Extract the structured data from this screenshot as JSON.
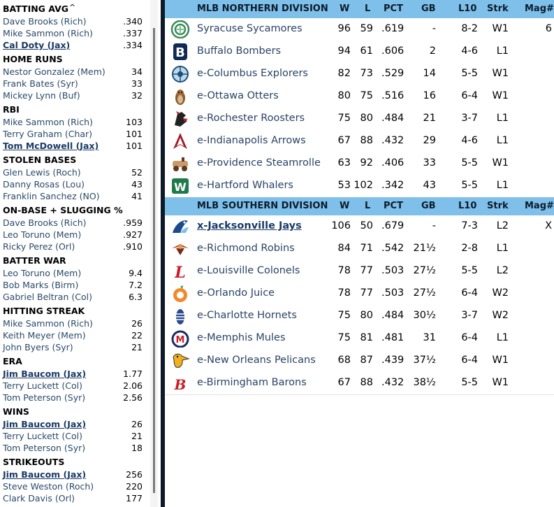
{
  "leaders": {
    "scroll_caret": "^",
    "sections": [
      {
        "title": "BATTING AVG",
        "rows": [
          {
            "name": "Dave Brooks (Rich)",
            "value": ".340",
            "link": false
          },
          {
            "name": "Mike Sammon (Rich)",
            "value": ".337",
            "link": false
          },
          {
            "name": "Cal Doty (Jax)",
            "value": ".334",
            "link": true
          }
        ]
      },
      {
        "title": "HOME RUNS",
        "rows": [
          {
            "name": "Nestor Gonzalez (Mem)",
            "value": "34",
            "link": false
          },
          {
            "name": "Frank Bates (Syr)",
            "value": "33",
            "link": false
          },
          {
            "name": "Mickey Lynn (Buf)",
            "value": "32",
            "link": false
          }
        ]
      },
      {
        "title": "RBI",
        "rows": [
          {
            "name": "Mike Sammon (Rich)",
            "value": "103",
            "link": false
          },
          {
            "name": "Terry Graham (Char)",
            "value": "101",
            "link": false
          },
          {
            "name": "Tom McDowell (Jax)",
            "value": "101",
            "link": true
          }
        ]
      },
      {
        "title": "STOLEN BASES",
        "rows": [
          {
            "name": "Glen Lewis (Roch)",
            "value": "52",
            "link": false
          },
          {
            "name": "Danny Rosas (Lou)",
            "value": "43",
            "link": false
          },
          {
            "name": "Franklin Sanchez (NO)",
            "value": "41",
            "link": false
          }
        ]
      },
      {
        "title": "ON-BASE + SLUGGING %",
        "rows": [
          {
            "name": "Dave Brooks (Rich)",
            "value": ".959",
            "link": false
          },
          {
            "name": "Leo Toruno (Mem)",
            "value": ".927",
            "link": false
          },
          {
            "name": "Ricky Perez (Orl)",
            "value": ".910",
            "link": false
          }
        ]
      },
      {
        "title": "BATTER WAR",
        "rows": [
          {
            "name": "Leo Toruno (Mem)",
            "value": "9.4",
            "link": false
          },
          {
            "name": "Bob Marks (Birm)",
            "value": "7.2",
            "link": false
          },
          {
            "name": "Gabriel Beltran (Col)",
            "value": "6.3",
            "link": false
          }
        ]
      },
      {
        "title": "HITTING STREAK",
        "rows": [
          {
            "name": "Mike Sammon (Rich)",
            "value": "26",
            "link": false
          },
          {
            "name": "Keith Meyer (Mem)",
            "value": "22",
            "link": false
          },
          {
            "name": "John Byers (Syr)",
            "value": "21",
            "link": false
          }
        ]
      },
      {
        "title": "ERA",
        "rows": [
          {
            "name": "Jim Baucom (Jax)",
            "value": "1.77",
            "link": true
          },
          {
            "name": "Terry Luckett (Col)",
            "value": "2.06",
            "link": false
          },
          {
            "name": "Tom Peterson (Syr)",
            "value": "2.56",
            "link": false
          }
        ]
      },
      {
        "title": "WINS",
        "rows": [
          {
            "name": "Jim Baucom (Jax)",
            "value": "26",
            "link": true
          },
          {
            "name": "Terry Luckett (Col)",
            "value": "21",
            "link": false
          },
          {
            "name": "Tom Peterson (Syr)",
            "value": "18",
            "link": false
          }
        ]
      },
      {
        "title": "STRIKEOUTS",
        "rows": [
          {
            "name": "Jim Baucom (Jax)",
            "value": "256",
            "link": true
          },
          {
            "name": "Steve Weston (Roch)",
            "value": "220",
            "link": false
          },
          {
            "name": "Clark Davis (Orl)",
            "value": "177",
            "link": false
          }
        ]
      }
    ]
  },
  "standings": {
    "columns": {
      "w": "W",
      "l": "L",
      "pct": "PCT",
      "gb": "GB",
      "l10": "L10",
      "strk": "Strk",
      "mag": "Mag#"
    },
    "colors": {
      "header_bg": "#7fc0ea",
      "divider": "#0d1a2a"
    },
    "divisions": [
      {
        "name": "MLB NORTHERN DIVISION",
        "teams": [
          {
            "logo": "sycamore-logo",
            "name": "Syracuse Sycamores",
            "w": "96",
            "l": "59",
            "pct": ".619",
            "gb": "-",
            "l10": "8-2",
            "strk": "W1",
            "mag": "6",
            "clinched": false
          },
          {
            "logo": "bomber-b-logo",
            "name": "Buffalo Bombers",
            "w": "94",
            "l": "61",
            "pct": ".606",
            "gb": "2",
            "l10": "4-6",
            "strk": "L1",
            "mag": "",
            "clinched": false
          },
          {
            "logo": "explorer-compass-logo",
            "name": "e-Columbus Explorers",
            "w": "82",
            "l": "73",
            "pct": ".529",
            "gb": "14",
            "l10": "5-5",
            "strk": "W1",
            "mag": "",
            "clinched": false
          },
          {
            "logo": "otter-logo",
            "name": "e-Ottawa Otters",
            "w": "80",
            "l": "75",
            "pct": ".516",
            "gb": "16",
            "l10": "6-4",
            "strk": "W1",
            "mag": "",
            "clinched": false
          },
          {
            "logo": "rooster-logo",
            "name": "e-Rochester Roosters",
            "w": "75",
            "l": "80",
            "pct": ".484",
            "gb": "21",
            "l10": "3-7",
            "strk": "L1",
            "mag": "",
            "clinched": false
          },
          {
            "logo": "arrow-logo",
            "name": "e-Indianapolis Arrows",
            "w": "67",
            "l": "88",
            "pct": ".432",
            "gb": "29",
            "l10": "4-6",
            "strk": "L1",
            "mag": "",
            "clinched": false
          },
          {
            "logo": "steamroller-logo",
            "name": "e-Providence Steamrolle",
            "w": "63",
            "l": "92",
            "pct": ".406",
            "gb": "33",
            "l10": "5-5",
            "strk": "W1",
            "mag": "",
            "clinched": false
          },
          {
            "logo": "whale-w-logo",
            "name": "e-Hartford Whalers",
            "w": "53",
            "l": "102",
            "pct": ".342",
            "gb": "43",
            "l10": "5-5",
            "strk": "L1",
            "mag": "",
            "clinched": false
          }
        ]
      },
      {
        "name": "MLB SOUTHERN DIVISION",
        "teams": [
          {
            "logo": "jay-logo",
            "name": "x-Jacksonville Jays",
            "w": "106",
            "l": "50",
            "pct": ".679",
            "gb": "-",
            "l10": "7-3",
            "strk": "L2",
            "mag": "X",
            "clinched": true
          },
          {
            "logo": "robin-logo",
            "name": "e-Richmond Robins",
            "w": "84",
            "l": "71",
            "pct": ".542",
            "gb": "21½",
            "l10": "2-8",
            "strk": "L1",
            "mag": "",
            "clinched": false
          },
          {
            "logo": "colonel-l-logo",
            "name": "e-Louisville Colonels",
            "w": "78",
            "l": "77",
            "pct": ".503",
            "gb": "27½",
            "l10": "5-5",
            "strk": "L2",
            "mag": "",
            "clinched": false
          },
          {
            "logo": "orange-logo",
            "name": "e-Orlando Juice",
            "w": "78",
            "l": "77",
            "pct": ".503",
            "gb": "27½",
            "l10": "6-4",
            "strk": "W2",
            "mag": "",
            "clinched": false
          },
          {
            "logo": "hornet-logo",
            "name": "e-Charlotte Hornets",
            "w": "75",
            "l": "80",
            "pct": ".484",
            "gb": "30½",
            "l10": "3-7",
            "strk": "W2",
            "mag": "",
            "clinched": false
          },
          {
            "logo": "mule-m-logo",
            "name": "e-Memphis Mules",
            "w": "75",
            "l": "81",
            "pct": ".481",
            "gb": "31",
            "l10": "6-4",
            "strk": "L1",
            "mag": "",
            "clinched": false
          },
          {
            "logo": "pelican-logo",
            "name": "e-New Orleans Pelicans",
            "w": "68",
            "l": "87",
            "pct": ".439",
            "gb": "37½",
            "l10": "6-4",
            "strk": "W1",
            "mag": "",
            "clinched": false
          },
          {
            "logo": "baron-b-logo",
            "name": "e-Birmingham Barons",
            "w": "67",
            "l": "88",
            "pct": ".432",
            "gb": "38½",
            "l10": "5-5",
            "strk": "W1",
            "mag": "",
            "clinched": false
          }
        ]
      }
    ]
  }
}
